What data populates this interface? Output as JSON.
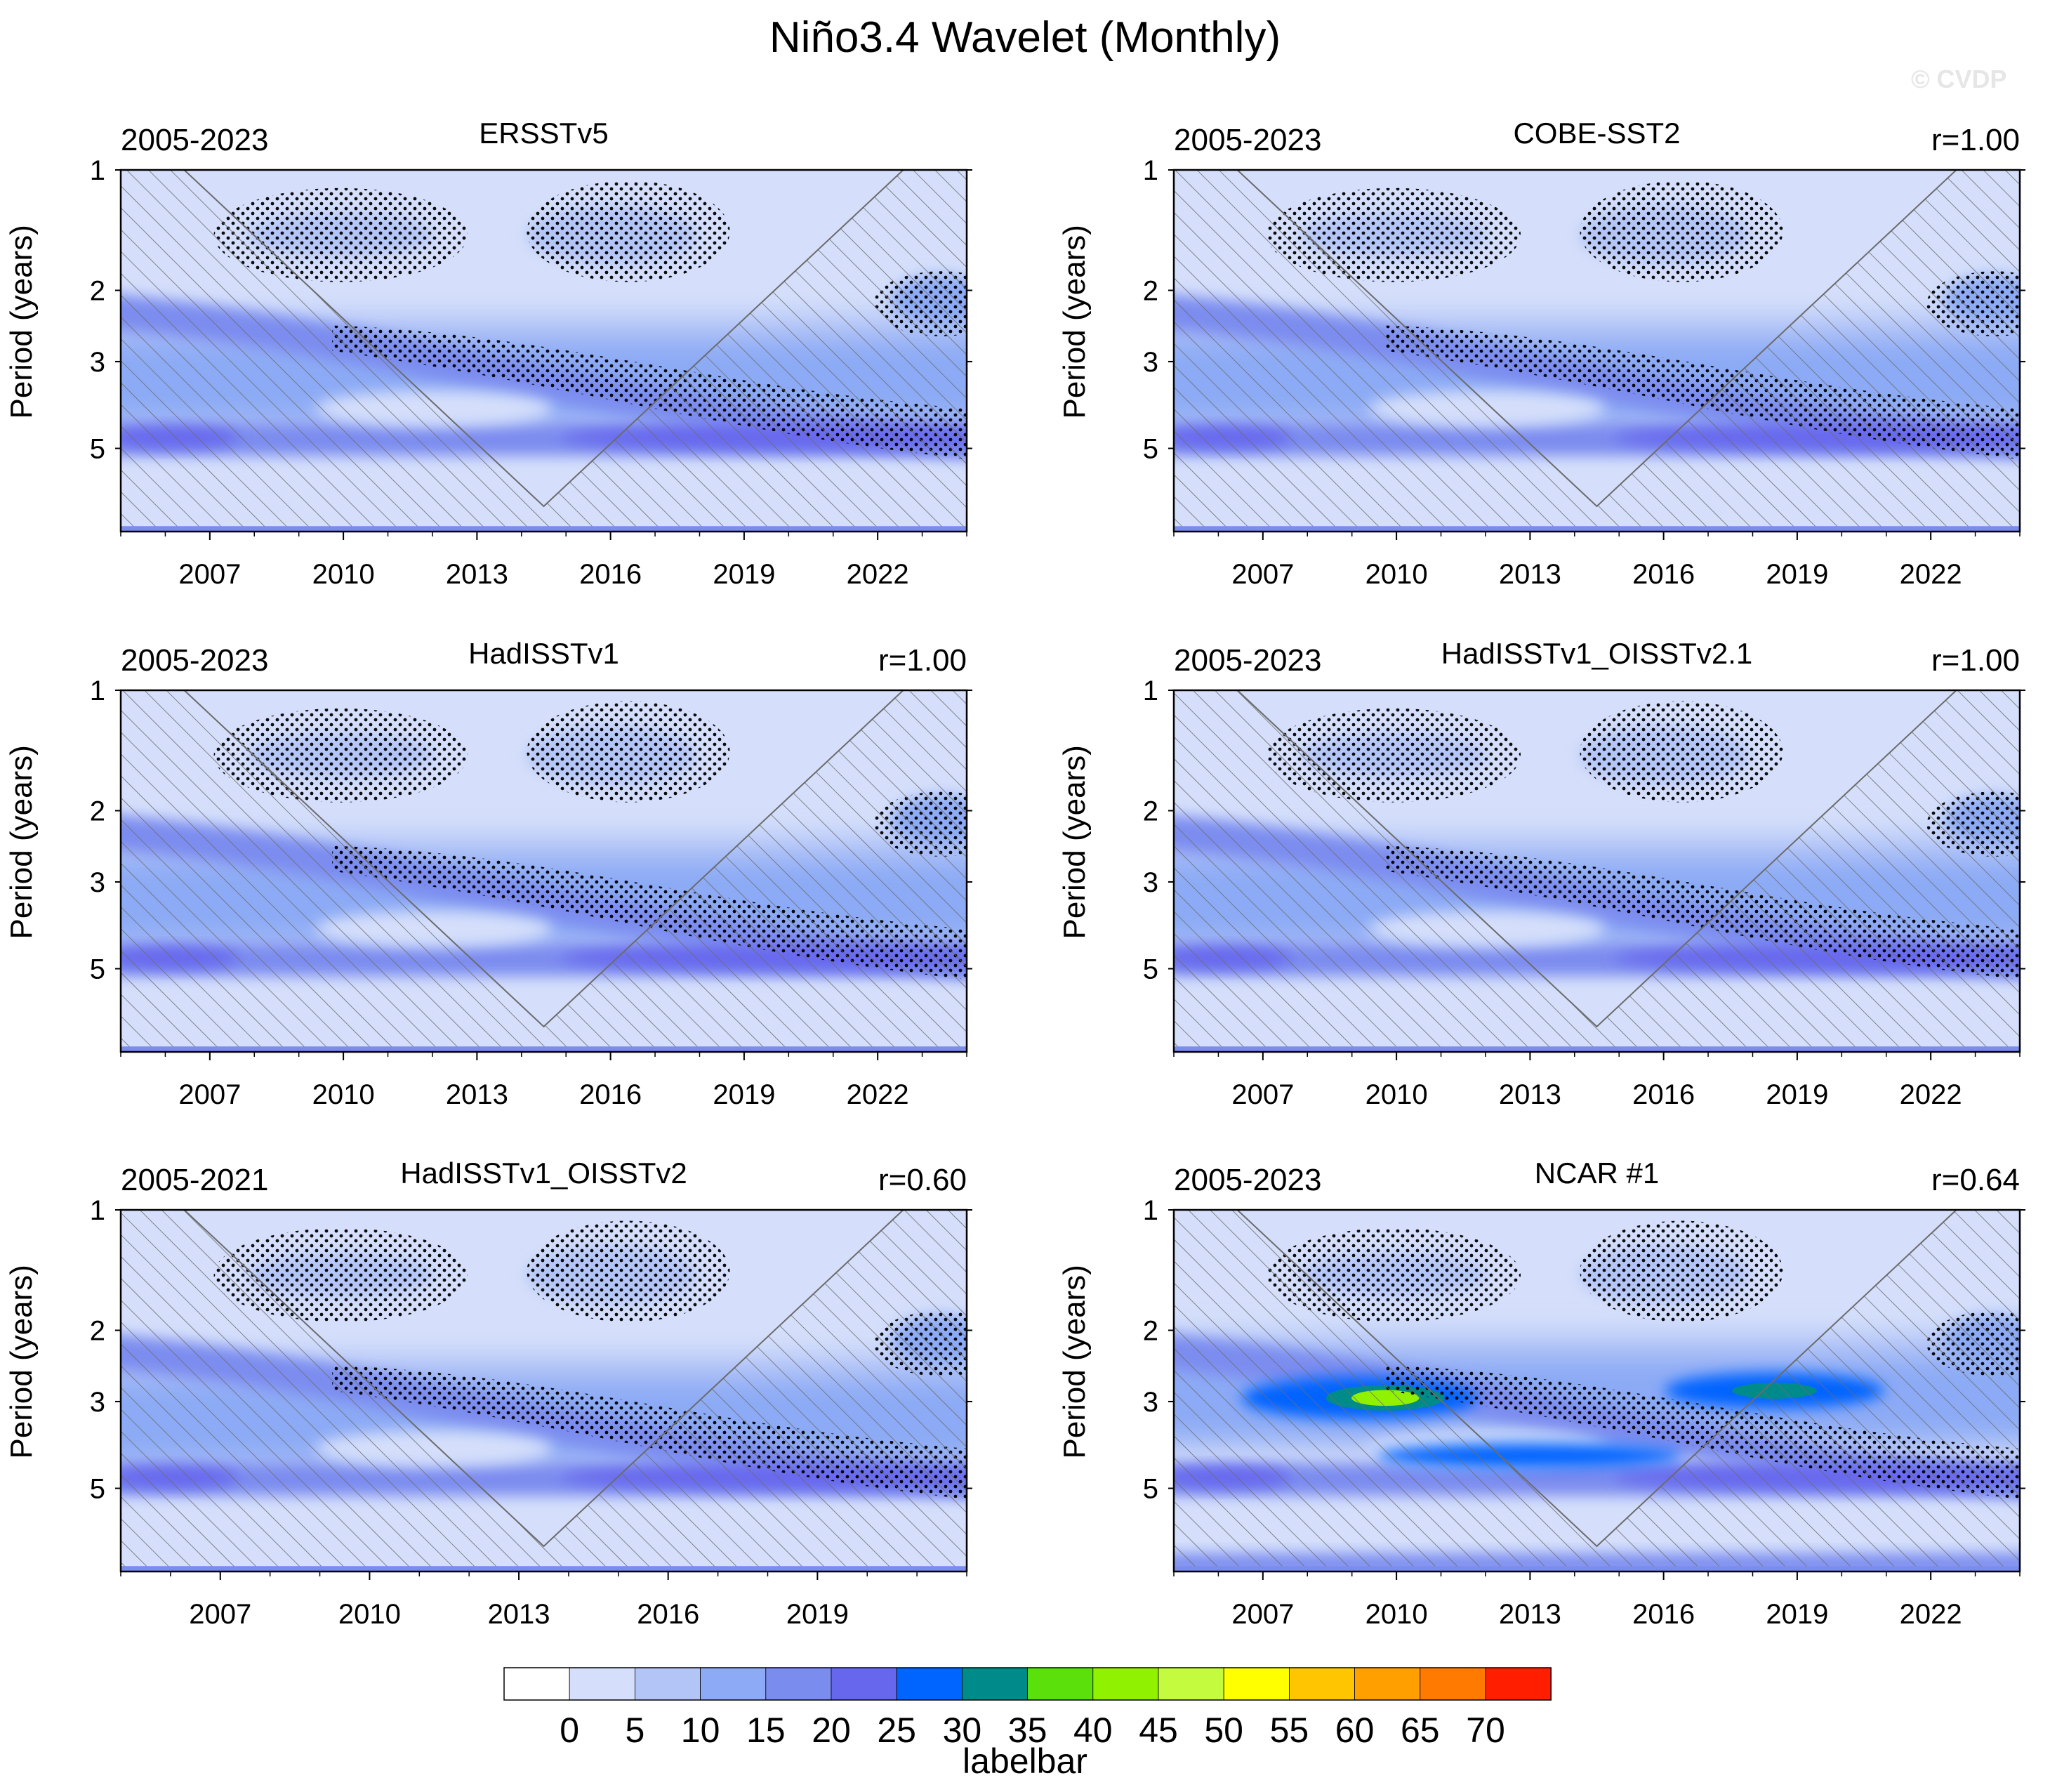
{
  "title": "Niño3.4 Wavelet (Monthly)",
  "watermark": "© CVDP",
  "colorbar": {
    "colors": [
      "#ffffff",
      "#d5dffb",
      "#b3c5f7",
      "#8caaf5",
      "#7b8cef",
      "#6767ee",
      "#0064ff",
      "#008b8b",
      "#5be00b",
      "#91f200",
      "#c4fb3e",
      "#ffff00",
      "#ffc600",
      "#ffa000",
      "#ff7a00",
      "#ff1e00"
    ],
    "labels": [
      "0",
      "5",
      "10",
      "15",
      "20",
      "25",
      "30",
      "35",
      "40",
      "45",
      "50",
      "55",
      "60",
      "65",
      "70"
    ],
    "caption": "labelbar"
  },
  "chart_data": [
    {
      "type": "heatmap",
      "title": "ERSSTv5",
      "period": "2005-2023",
      "corr": "",
      "ylabel": "Period (years)",
      "yticks": [
        "1",
        "2",
        "3",
        "5"
      ],
      "xticks": [
        "2007",
        "2010",
        "2013",
        "2016",
        "2019",
        "2022"
      ],
      "xlim": [
        2005,
        2024
      ],
      "peak_power": 25
    },
    {
      "type": "heatmap",
      "title": "COBE-SST2",
      "period": "2005-2023",
      "corr": "r=1.00",
      "ylabel": "Period (years)",
      "yticks": [
        "1",
        "2",
        "3",
        "5"
      ],
      "xticks": [
        "2007",
        "2010",
        "2013",
        "2016",
        "2019",
        "2022"
      ],
      "xlim": [
        2005,
        2024
      ],
      "peak_power": 25
    },
    {
      "type": "heatmap",
      "title": "HadISSTv1",
      "period": "2005-2023",
      "corr": "r=1.00",
      "ylabel": "Period (years)",
      "yticks": [
        "1",
        "2",
        "3",
        "5"
      ],
      "xticks": [
        "2007",
        "2010",
        "2013",
        "2016",
        "2019",
        "2022"
      ],
      "xlim": [
        2005,
        2024
      ],
      "peak_power": 25
    },
    {
      "type": "heatmap",
      "title": "HadISSTv1_OISSTv2.1",
      "period": "2005-2023",
      "corr": "r=1.00",
      "ylabel": "Period (years)",
      "yticks": [
        "1",
        "2",
        "3",
        "5"
      ],
      "xticks": [
        "2007",
        "2010",
        "2013",
        "2016",
        "2019",
        "2022"
      ],
      "xlim": [
        2005,
        2024
      ],
      "peak_power": 25
    },
    {
      "type": "heatmap",
      "title": "HadISSTv1_OISSTv2",
      "period": "2005-2021",
      "corr": "r=0.60",
      "ylabel": "Period (years)",
      "yticks": [
        "1",
        "2",
        "3",
        "5"
      ],
      "xticks": [
        "2007",
        "2010",
        "2013",
        "2016",
        "2019"
      ],
      "xlim": [
        2005,
        2022
      ],
      "peak_power": 25
    },
    {
      "type": "heatmap",
      "title": "NCAR #1",
      "period": "2005-2023",
      "corr": "r=0.64",
      "ylabel": "Period (years)",
      "yticks": [
        "1",
        "2",
        "3",
        "5"
      ],
      "xticks": [
        "2007",
        "2010",
        "2013",
        "2016",
        "2019",
        "2022"
      ],
      "xlim": [
        2005,
        2024
      ],
      "peak_power": 45
    }
  ]
}
